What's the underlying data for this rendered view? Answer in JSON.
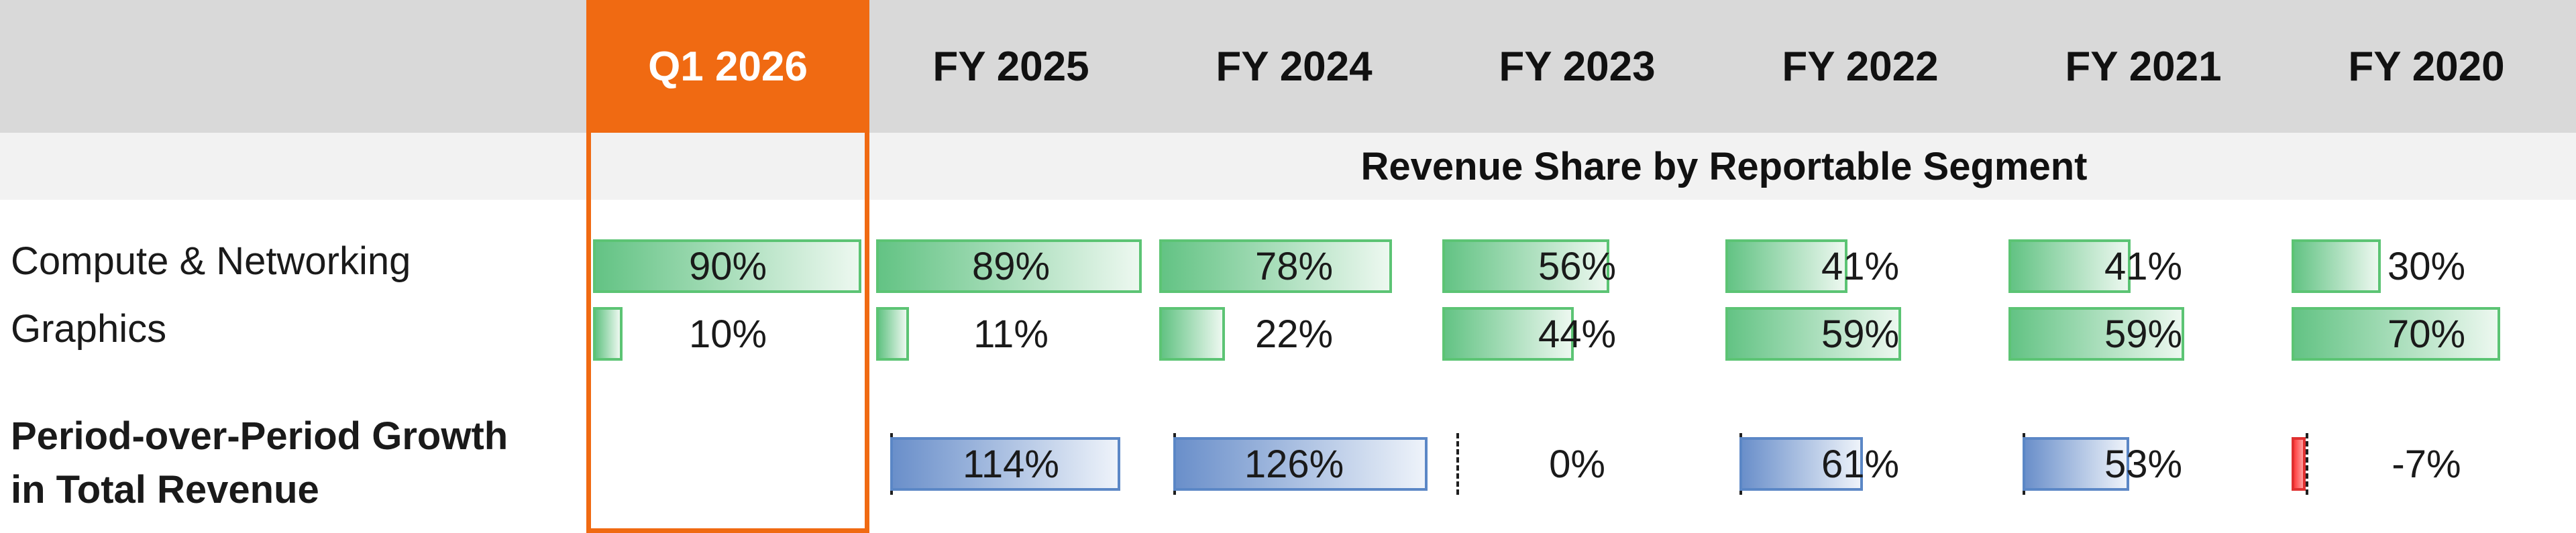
{
  "columns": [
    "Q1 2026",
    "FY 2025",
    "FY 2024",
    "FY 2023",
    "FY 2022",
    "FY 2021",
    "FY 2020"
  ],
  "highlight_column": "Q1 2026",
  "section_title": "Revenue Share by Reportable Segment",
  "rows": {
    "compute": {
      "label": "Compute & Networking",
      "labels": [
        "90%",
        "89%",
        "78%",
        "56%",
        "41%",
        "41%",
        "30%"
      ]
    },
    "graphics": {
      "label": "Graphics",
      "labels": [
        "10%",
        "11%",
        "22%",
        "44%",
        "59%",
        "59%",
        "70%"
      ]
    },
    "growth": {
      "label_line1": "Period-over-Period Growth",
      "label_line2": "in Total Revenue",
      "labels": [
        "",
        "114%",
        "126%",
        "0%",
        "61%",
        "53%",
        "-7%"
      ]
    }
  },
  "chart_data": {
    "type": "table",
    "title": "Revenue Share by Reportable Segment",
    "columns": [
      "Q1 2026",
      "FY 2025",
      "FY 2024",
      "FY 2023",
      "FY 2022",
      "FY 2021",
      "FY 2020"
    ],
    "series": [
      {
        "name": "Compute & Networking",
        "unit": "%",
        "values": [
          90,
          89,
          78,
          56,
          41,
          41,
          30
        ]
      },
      {
        "name": "Graphics",
        "unit": "%",
        "values": [
          10,
          11,
          22,
          44,
          59,
          59,
          70
        ]
      },
      {
        "name": "Period-over-Period Growth in Total Revenue",
        "unit": "%",
        "values": [
          null,
          114,
          126,
          0,
          61,
          53,
          -7
        ]
      }
    ],
    "share_scale_max": 90,
    "growth_scale": [
      -7,
      126
    ]
  },
  "colors": {
    "accent": "#f06a12",
    "share_bar": "#63c384",
    "share_bar_border": "#5cc474",
    "growth_bar": "#6a8fca",
    "growth_bar_border": "#5b87c6",
    "negative_bar": "#ff3c3c",
    "header_band": "#d9d9d9",
    "subheader_band": "#f2f2f2"
  }
}
